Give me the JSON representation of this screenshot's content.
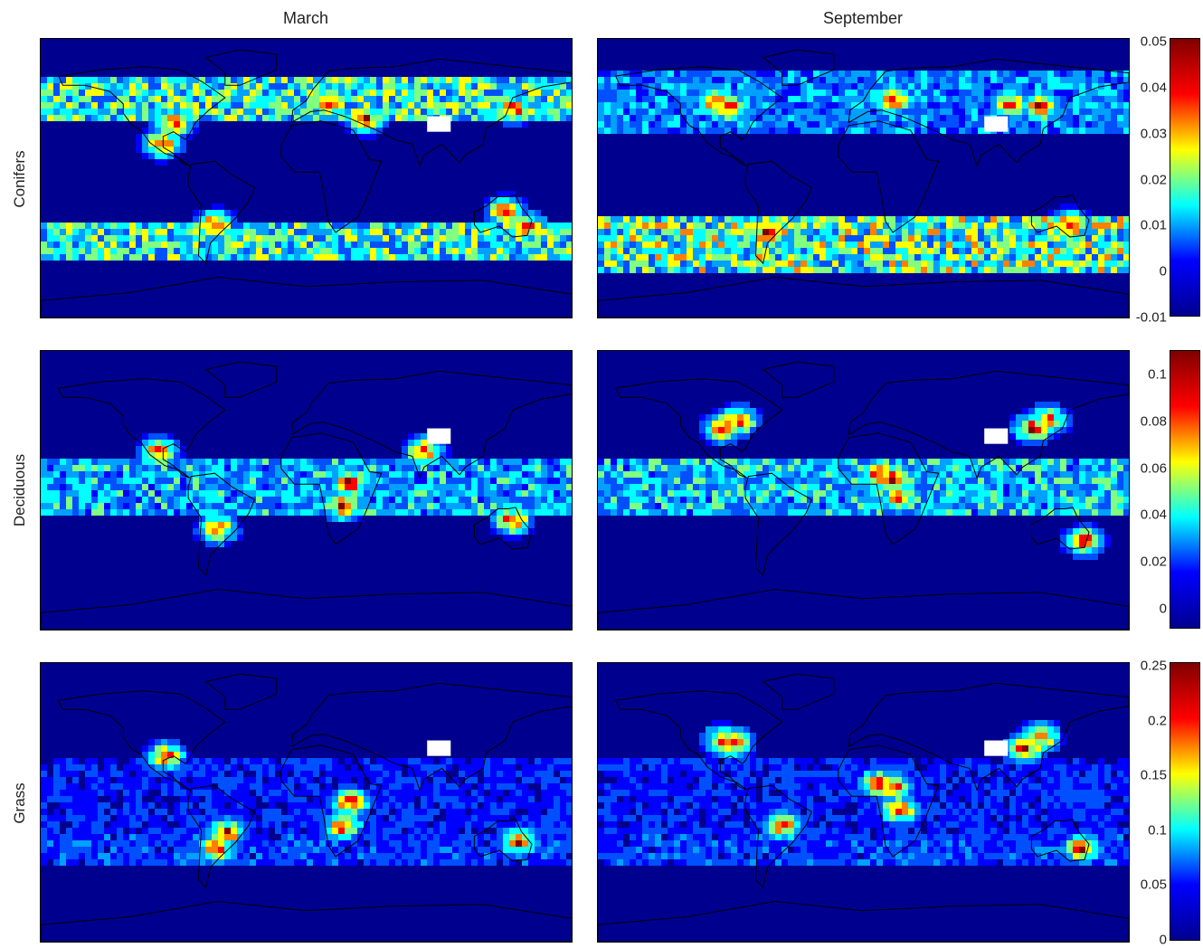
{
  "columns": [
    "March",
    "September"
  ],
  "rows": [
    {
      "label": "Conifers",
      "colorbar": {
        "ticks": [
          "0.05",
          "0.04",
          "0.03",
          "0.02",
          "0.01",
          "0",
          "-0.01"
        ]
      }
    },
    {
      "label": "Deciduous",
      "colorbar": {
        "ticks": [
          "0.1",
          "0.08",
          "0.06",
          "0.04",
          "0.02",
          "0"
        ]
      }
    },
    {
      "label": "Grass",
      "colorbar": {
        "ticks": [
          "0.25",
          "0.2",
          "0.15",
          "0.1",
          "0.05",
          "0"
        ]
      }
    }
  ],
  "colormap": {
    "name": "jet",
    "stops": [
      "#00008f",
      "#0000ff",
      "#00ffff",
      "#ffff00",
      "#ff0000",
      "#800000"
    ]
  },
  "panel_background": "#00008f",
  "coastline_color": "#000000",
  "missing_data_color": "#ffffff"
}
